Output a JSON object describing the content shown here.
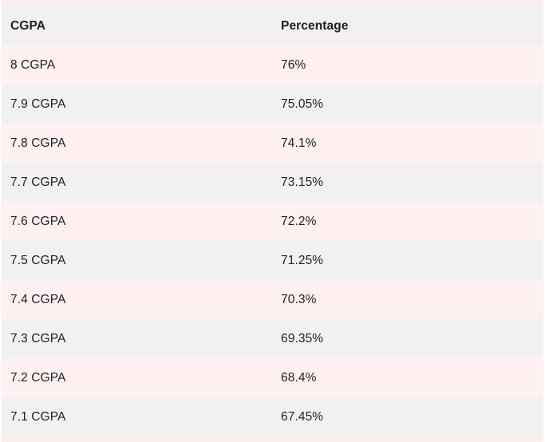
{
  "table": {
    "headers": {
      "cgpa": "CGPA",
      "percentage": "Percentage"
    },
    "rows": [
      {
        "cgpa": "8 CGPA",
        "percentage": "76%"
      },
      {
        "cgpa": "7.9 CGPA",
        "percentage": "75.05%"
      },
      {
        "cgpa": "7.8 CGPA",
        "percentage": "74.1%"
      },
      {
        "cgpa": "7.7 CGPA",
        "percentage": "73.15%"
      },
      {
        "cgpa": "7.6 CGPA",
        "percentage": "72.2%"
      },
      {
        "cgpa": "7.5 CGPA",
        "percentage": "71.25%"
      },
      {
        "cgpa": "7.4 CGPA",
        "percentage": "70.3%"
      },
      {
        "cgpa": "7.3 CGPA",
        "percentage": "69.35%"
      },
      {
        "cgpa": "7.2 CGPA",
        "percentage": "68.4%"
      },
      {
        "cgpa": "7.1 CGPA",
        "percentage": "67.45%"
      }
    ]
  },
  "colors": {
    "header_row": "#f1f1f1",
    "alt_row_pink": "#fff1f1",
    "alt_row_gray": "#f1f1f1"
  }
}
